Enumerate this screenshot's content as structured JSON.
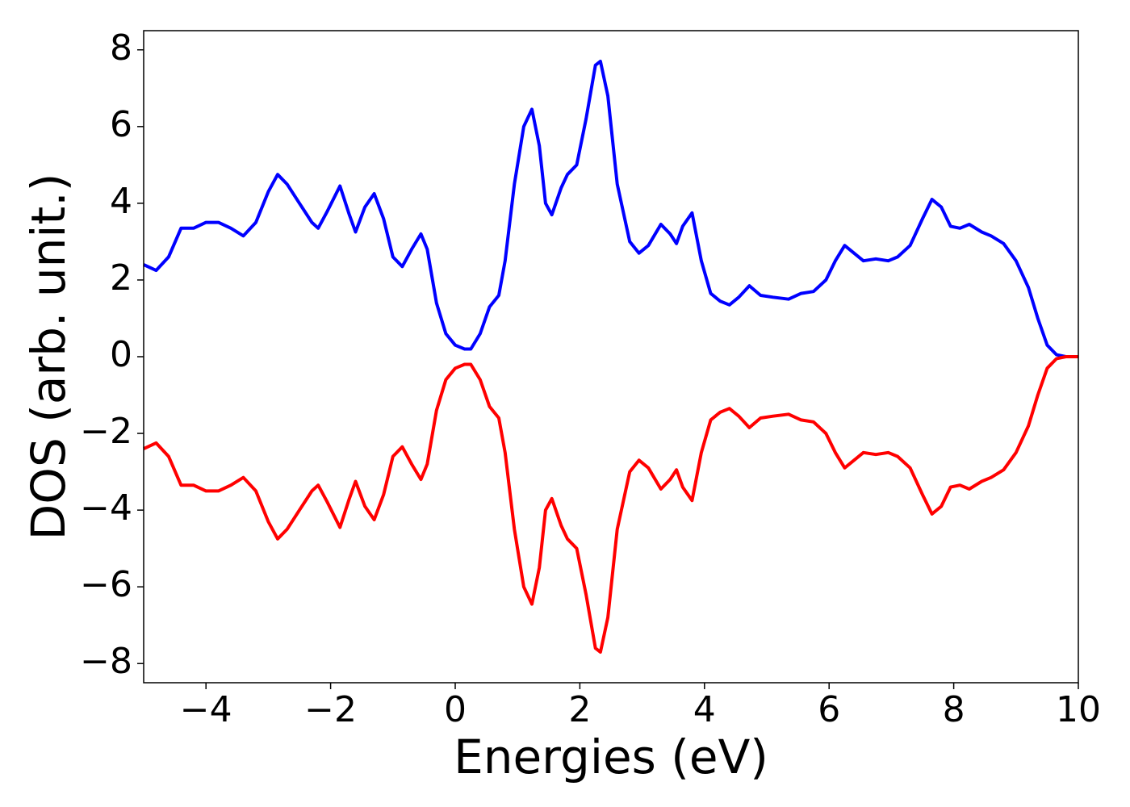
{
  "chart_data": {
    "type": "line",
    "xlabel": "Energies (eV)",
    "ylabel": "DOS (arb. unit.)",
    "x": [
      -5,
      -4.8,
      -4.6,
      -4.4,
      -4.2,
      -4.0,
      -3.8,
      -3.6,
      -3.4,
      -3.2,
      -3.0,
      -2.85,
      -2.7,
      -2.5,
      -2.3,
      -2.2,
      -2.05,
      -1.85,
      -1.7,
      -1.6,
      -1.45,
      -1.3,
      -1.15,
      -1.0,
      -0.85,
      -0.7,
      -0.55,
      -0.45,
      -0.3,
      -0.15,
      0,
      0.15,
      0.25,
      0.4,
      0.55,
      0.7,
      0.8,
      0.95,
      1.1,
      1.23,
      1.35,
      1.45,
      1.55,
      1.7,
      1.8,
      1.95,
      2.1,
      2.25,
      2.33,
      2.45,
      2.6,
      2.8,
      2.95,
      3.1,
      3.3,
      3.45,
      3.55,
      3.65,
      3.8,
      3.95,
      4.1,
      4.25,
      4.4,
      4.55,
      4.72,
      4.9,
      5.1,
      5.35,
      5.55,
      5.75,
      5.95,
      6.1,
      6.25,
      6.4,
      6.55,
      6.75,
      6.95,
      7.1,
      7.3,
      7.5,
      7.65,
      7.8,
      7.95,
      8.1,
      8.25,
      8.45,
      8.6,
      8.8,
      9.0,
      9.2,
      9.35,
      9.5,
      9.65,
      9.8,
      10
    ],
    "series": [
      {
        "color": "#0000ff",
        "values": [
          2.4,
          2.25,
          2.6,
          3.35,
          3.35,
          3.5,
          3.5,
          3.35,
          3.15,
          3.5,
          4.3,
          4.75,
          4.5,
          4.0,
          3.5,
          3.35,
          3.8,
          4.45,
          3.7,
          3.25,
          3.9,
          4.25,
          3.6,
          2.6,
          2.35,
          2.8,
          3.2,
          2.8,
          1.4,
          0.6,
          0.3,
          0.2,
          0.2,
          0.6,
          1.3,
          1.6,
          2.5,
          4.5,
          6.0,
          6.45,
          5.5,
          4.0,
          3.7,
          4.4,
          4.75,
          5.0,
          6.2,
          7.6,
          7.7,
          6.8,
          4.5,
          3.0,
          2.7,
          2.9,
          3.45,
          3.2,
          2.95,
          3.4,
          3.75,
          2.5,
          1.65,
          1.45,
          1.35,
          1.55,
          1.85,
          1.6,
          1.55,
          1.5,
          1.65,
          1.7,
          2.0,
          2.5,
          2.9,
          2.7,
          2.5,
          2.55,
          2.5,
          2.6,
          2.9,
          3.6,
          4.1,
          3.9,
          3.4,
          3.35,
          3.45,
          3.25,
          3.15,
          2.95,
          2.5,
          1.8,
          1.0,
          0.3,
          0.05,
          0.0,
          0.0
        ]
      },
      {
        "color": "#ff0000",
        "values": [
          -2.4,
          -2.25,
          -2.6,
          -3.35,
          -3.35,
          -3.5,
          -3.5,
          -3.35,
          -3.15,
          -3.5,
          -4.3,
          -4.75,
          -4.5,
          -4.0,
          -3.5,
          -3.35,
          -3.8,
          -4.45,
          -3.7,
          -3.25,
          -3.9,
          -4.25,
          -3.6,
          -2.6,
          -2.35,
          -2.8,
          -3.2,
          -2.8,
          -1.4,
          -0.6,
          -0.3,
          -0.2,
          -0.2,
          -0.6,
          -1.3,
          -1.6,
          -2.5,
          -4.5,
          -6.0,
          -6.45,
          -5.5,
          -4.0,
          -3.7,
          -4.4,
          -4.75,
          -5.0,
          -6.2,
          -7.6,
          -7.7,
          -6.8,
          -4.5,
          -3.0,
          -2.7,
          -2.9,
          -3.45,
          -3.2,
          -2.95,
          -3.4,
          -3.75,
          -2.5,
          -1.65,
          -1.45,
          -1.35,
          -1.55,
          -1.85,
          -1.6,
          -1.55,
          -1.5,
          -1.65,
          -1.7,
          -2.0,
          -2.5,
          -2.9,
          -2.7,
          -2.5,
          -2.55,
          -2.5,
          -2.6,
          -2.9,
          -3.6,
          -4.1,
          -3.9,
          -3.4,
          -3.35,
          -3.45,
          -3.25,
          -3.15,
          -2.95,
          -2.5,
          -1.8,
          -1.0,
          -0.3,
          -0.05,
          0.0,
          0.0
        ]
      }
    ],
    "xlim": [
      -5,
      10
    ],
    "xticks": [
      {
        "value": -4,
        "label": "−4"
      },
      {
        "value": -2,
        "label": "−2"
      },
      0,
      2,
      4,
      6,
      8,
      10
    ],
    "ylim": [
      -8.5,
      8.5
    ],
    "yticks": [
      {
        "value": -8,
        "label": "−8"
      },
      {
        "value": -6,
        "label": "−6"
      },
      {
        "value": -4,
        "label": "−4"
      },
      {
        "value": -2,
        "label": "−2"
      },
      0,
      2,
      4,
      6,
      8
    ],
    "grid": false
  }
}
